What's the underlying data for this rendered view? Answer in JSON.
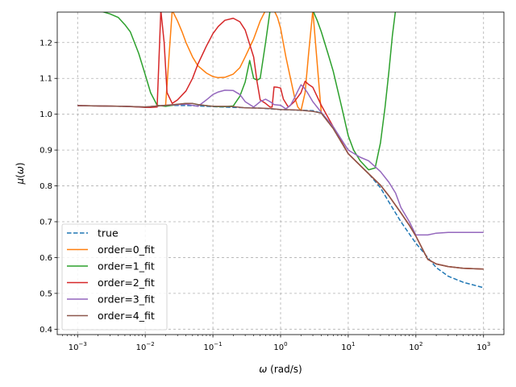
{
  "chart_data": {
    "type": "line",
    "xlabel": "ω (rad/s)",
    "xlabel_parts": [
      "ω",
      " (rad/s)"
    ],
    "ylabel": "μ(ω)",
    "ylabel_parts": [
      "μ",
      "(",
      "ω",
      ")"
    ],
    "xscale": "log",
    "xlim": [
      0.0005,
      2000
    ],
    "ylim": [
      0.385,
      1.285
    ],
    "xticks": [
      0.001,
      0.01,
      0.1,
      1,
      10,
      100,
      1000
    ],
    "xtick_labels": [
      {
        "base": "10",
        "exp": "−3"
      },
      {
        "base": "10",
        "exp": "−2"
      },
      {
        "base": "10",
        "exp": "−1"
      },
      {
        "base": "10",
        "exp": "0"
      },
      {
        "base": "10",
        "exp": "1"
      },
      {
        "base": "10",
        "exp": "2"
      },
      {
        "base": "10",
        "exp": "3"
      }
    ],
    "yticks": [
      0.4,
      0.5,
      0.6,
      0.7,
      0.8,
      0.9,
      1.0,
      1.1,
      1.2
    ],
    "ytick_labels": [
      "0.4",
      "0.5",
      "0.6",
      "0.7",
      "0.8",
      "0.9",
      "1.0",
      "1.1",
      "1.2"
    ],
    "grid": true,
    "legend_position": "lower-left",
    "series": [
      {
        "name": "true",
        "color": "#1f77b4",
        "dash": true,
        "x": [
          0.001,
          0.002,
          0.005,
          0.01,
          0.02,
          0.05,
          0.1,
          0.2,
          0.5,
          1,
          2,
          3,
          4,
          6,
          10,
          15,
          20,
          30,
          40,
          60,
          80,
          100,
          150,
          200,
          300,
          500,
          1000
        ],
        "y": [
          1.024,
          1.023,
          1.022,
          1.02,
          1.025,
          1.024,
          1.021,
          1.019,
          1.017,
          1.013,
          1.011,
          1.01,
          1.003,
          0.96,
          0.89,
          0.857,
          0.834,
          0.795,
          0.755,
          0.7,
          0.666,
          0.64,
          0.6,
          0.572,
          0.548,
          0.531,
          0.516
        ]
      },
      {
        "name": "order=0_fit",
        "color": "#ff7f0e",
        "dash": false,
        "x": [
          0.001,
          0.002,
          0.005,
          0.01,
          0.02,
          0.025,
          0.03,
          0.035,
          0.04,
          0.05,
          0.06,
          0.08,
          0.1,
          0.12,
          0.15,
          0.2,
          0.25,
          0.3,
          0.4,
          0.5,
          0.6,
          0.7,
          0.8,
          0.9,
          1.0,
          1.2,
          1.4,
          1.6,
          1.8,
          2.0,
          2.3,
          2.6,
          3.0,
          4,
          6,
          10,
          15,
          20,
          30,
          40,
          60,
          80,
          100,
          150,
          200,
          300,
          500,
          1000
        ],
        "y": [
          1.024,
          1.023,
          1.022,
          1.02,
          1.025,
          1.29,
          1.26,
          1.23,
          1.2,
          1.16,
          1.135,
          1.115,
          1.105,
          1.102,
          1.103,
          1.112,
          1.13,
          1.16,
          1.21,
          1.26,
          1.29,
          1.29,
          1.29,
          1.27,
          1.24,
          1.16,
          1.1,
          1.05,
          1.02,
          1.01,
          1.06,
          1.17,
          1.29,
          1.003,
          0.96,
          0.89,
          0.857,
          0.834,
          0.802,
          0.772,
          0.725,
          0.69,
          0.66,
          0.595,
          0.582,
          0.575,
          0.57,
          0.568
        ]
      },
      {
        "name": "order=1_fit",
        "color": "#2ca02c",
        "dash": false,
        "x": [
          0.001,
          0.0015,
          0.002,
          0.003,
          0.004,
          0.005,
          0.006,
          0.008,
          0.01,
          0.012,
          0.015,
          0.02,
          0.025,
          0.03,
          0.04,
          0.05,
          0.06,
          0.08,
          0.1,
          0.12,
          0.15,
          0.2,
          0.25,
          0.3,
          0.35,
          0.4,
          0.45,
          0.5,
          0.6,
          0.7,
          0.8,
          1.0,
          1.5,
          2.0,
          2.5,
          3.0,
          3.5,
          4,
          5,
          6,
          8,
          10,
          12,
          15,
          20,
          25,
          30,
          35,
          40,
          45,
          50
        ],
        "y": [
          1.29,
          1.29,
          1.29,
          1.28,
          1.27,
          1.25,
          1.23,
          1.17,
          1.11,
          1.06,
          1.025,
          1.022,
          1.025,
          1.027,
          1.03,
          1.03,
          1.027,
          1.024,
          1.022,
          1.021,
          1.021,
          1.023,
          1.05,
          1.09,
          1.15,
          1.1,
          1.095,
          1.1,
          1.2,
          1.29,
          1.29,
          1.29,
          1.29,
          1.29,
          1.29,
          1.29,
          1.26,
          1.23,
          1.17,
          1.12,
          1.02,
          0.94,
          0.9,
          0.87,
          0.845,
          0.85,
          0.92,
          1.02,
          1.12,
          1.22,
          1.29
        ]
      },
      {
        "name": "order=2_fit",
        "color": "#d62728",
        "dash": false,
        "x": [
          0.001,
          0.002,
          0.005,
          0.008,
          0.01,
          0.012,
          0.015,
          0.017,
          0.019,
          0.021,
          0.025,
          0.03,
          0.04,
          0.05,
          0.06,
          0.08,
          0.1,
          0.12,
          0.15,
          0.2,
          0.25,
          0.3,
          0.4,
          0.45,
          0.5,
          0.6,
          0.7,
          0.75,
          0.8,
          0.9,
          1.0,
          1.1,
          1.3,
          1.6,
          2.0,
          2.3,
          2.6,
          3.0,
          4,
          6,
          10,
          15,
          20,
          30,
          40,
          60,
          80,
          100,
          150,
          200,
          300,
          500,
          1000
        ],
        "y": [
          1.024,
          1.023,
          1.022,
          1.02,
          1.019,
          1.019,
          1.02,
          1.29,
          1.2,
          1.06,
          1.03,
          1.04,
          1.065,
          1.1,
          1.14,
          1.19,
          1.225,
          1.245,
          1.262,
          1.268,
          1.258,
          1.235,
          1.16,
          1.09,
          1.04,
          1.03,
          1.02,
          1.02,
          1.076,
          1.075,
          1.073,
          1.042,
          1.02,
          1.035,
          1.06,
          1.092,
          1.083,
          1.075,
          1.025,
          0.965,
          0.89,
          0.857,
          0.834,
          0.802,
          0.772,
          0.725,
          0.69,
          0.66,
          0.595,
          0.582,
          0.575,
          0.57,
          0.568
        ]
      },
      {
        "name": "order=3_fit",
        "color": "#9467bd",
        "dash": false,
        "x": [
          0.001,
          0.002,
          0.005,
          0.01,
          0.02,
          0.04,
          0.05,
          0.06,
          0.08,
          0.1,
          0.12,
          0.15,
          0.2,
          0.25,
          0.3,
          0.4,
          0.5,
          0.6,
          0.7,
          0.8,
          1.0,
          1.2,
          1.4,
          1.6,
          1.8,
          2.0,
          2.2,
          2.5,
          3.0,
          4,
          6,
          10,
          15,
          20,
          30,
          40,
          50,
          60,
          80,
          100,
          150,
          200,
          300,
          500,
          1000
        ],
        "y": [
          1.024,
          1.023,
          1.022,
          1.02,
          1.025,
          1.028,
          1.025,
          1.022,
          1.04,
          1.055,
          1.062,
          1.067,
          1.066,
          1.055,
          1.035,
          1.02,
          1.035,
          1.042,
          1.035,
          1.027,
          1.025,
          1.015,
          1.025,
          1.045,
          1.065,
          1.082,
          1.075,
          1.06,
          1.035,
          1.005,
          0.965,
          0.9,
          0.88,
          0.87,
          0.84,
          0.81,
          0.78,
          0.74,
          0.7,
          0.663,
          0.663,
          0.668,
          0.67,
          0.67,
          0.67
        ]
      },
      {
        "name": "order=4_fit",
        "color": "#8c564b",
        "dash": false,
        "x": [
          0.001,
          0.002,
          0.005,
          0.01,
          0.02,
          0.03,
          0.04,
          0.05,
          0.06,
          0.08,
          0.1,
          0.15,
          0.2,
          0.3,
          0.5,
          0.7,
          1,
          1.5,
          2,
          3,
          4,
          6,
          10,
          15,
          20,
          30,
          40,
          60,
          80,
          100,
          150,
          200,
          300,
          500,
          1000
        ],
        "y": [
          1.024,
          1.023,
          1.022,
          1.02,
          1.025,
          1.028,
          1.03,
          1.03,
          1.027,
          1.024,
          1.022,
          1.022,
          1.021,
          1.018,
          1.017,
          1.016,
          1.013,
          1.012,
          1.011,
          1.008,
          1.003,
          0.96,
          0.89,
          0.857,
          0.834,
          0.802,
          0.772,
          0.725,
          0.69,
          0.66,
          0.595,
          0.582,
          0.575,
          0.57,
          0.568
        ]
      }
    ]
  }
}
